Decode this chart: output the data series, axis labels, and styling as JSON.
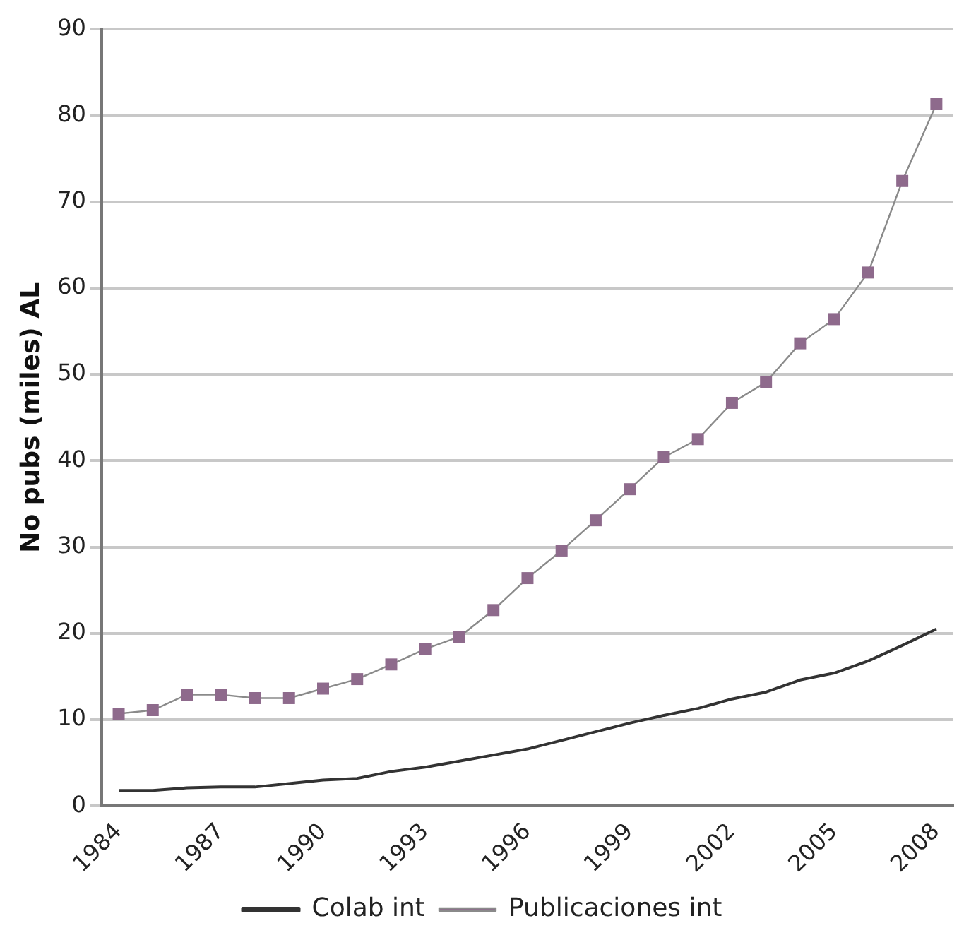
{
  "chart_data": {
    "type": "line",
    "ylabel": "No pubs (miles) AL",
    "categories": [
      "1984",
      null,
      null,
      "1987",
      null,
      null,
      "1990",
      null,
      null,
      "1993",
      null,
      null,
      "1996",
      null,
      null,
      "1999",
      null,
      null,
      "2002",
      null,
      null,
      "2005",
      null,
      null,
      "2008"
    ],
    "series": [
      {
        "name": "Colab int",
        "color": "#333333",
        "marker": "none",
        "values": [
          1.8,
          1.8,
          2.1,
          2.2,
          2.2,
          2.6,
          3.0,
          3.2,
          4.0,
          4.5,
          5.2,
          5.9,
          6.6,
          7.6,
          8.6,
          9.6,
          10.5,
          11.3,
          12.4,
          13.2,
          14.6,
          15.4,
          16.8,
          18.6,
          20.5
        ]
      },
      {
        "name": "Publicaciones int",
        "color": "#8e6a8c",
        "marker": "square",
        "values": [
          10.7,
          11.1,
          12.9,
          12.9,
          12.5,
          12.5,
          13.6,
          14.7,
          16.4,
          18.2,
          19.6,
          22.7,
          26.4,
          29.6,
          33.1,
          36.7,
          40.4,
          42.5,
          46.7,
          49.1,
          53.6,
          56.4,
          61.8,
          72.4,
          81.3
        ]
      }
    ],
    "ylim": [
      0,
      90
    ],
    "yticks": [
      0,
      10,
      20,
      30,
      40,
      50,
      60,
      70,
      80,
      90
    ],
    "grid": "y",
    "legend": "bottom"
  }
}
